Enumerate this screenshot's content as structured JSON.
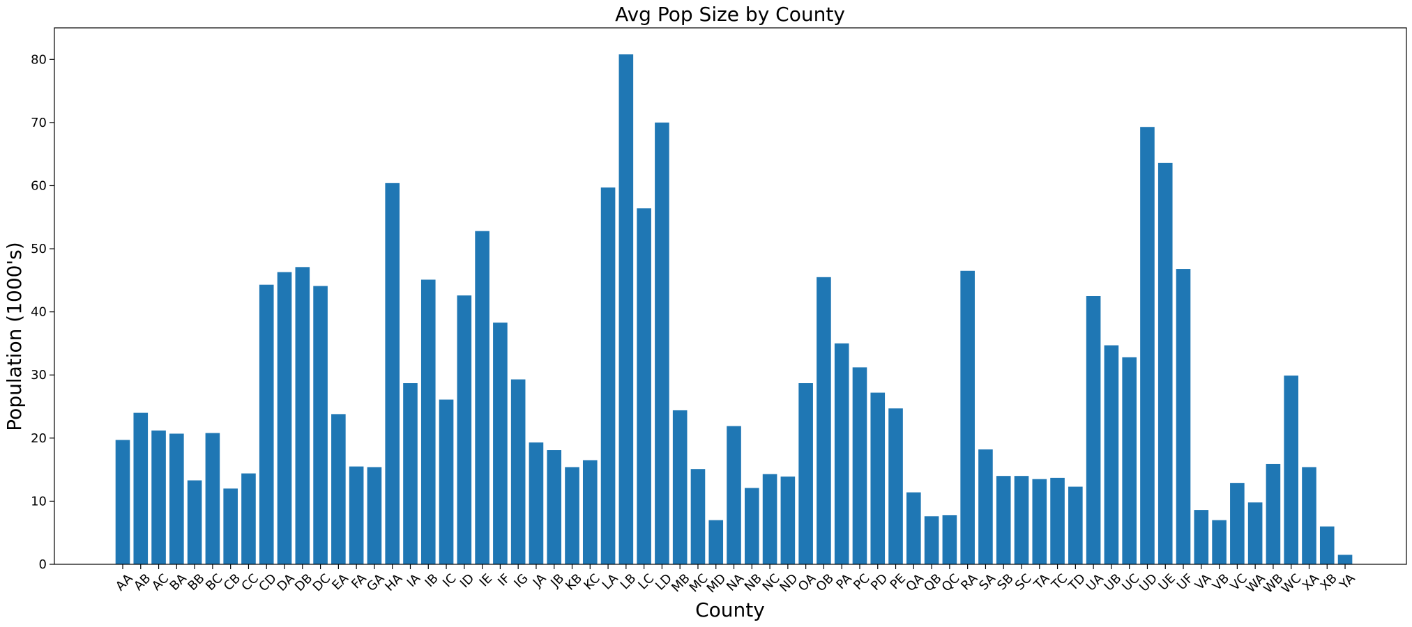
{
  "chart_data": {
    "type": "bar",
    "title": "Avg Pop Size by County",
    "xlabel": "County",
    "ylabel": "Population (1000's)",
    "ylim": [
      0,
      85
    ],
    "yticks": [
      0,
      10,
      20,
      30,
      40,
      50,
      60,
      70,
      80
    ],
    "grid": false,
    "bar_color": "#1f77b4",
    "categories": [
      "AA",
      "AB",
      "AC",
      "BA",
      "BB",
      "BC",
      "CB",
      "CC",
      "CD",
      "DA",
      "DB",
      "DC",
      "EA",
      "FA",
      "GA",
      "HA",
      "IA",
      "IB",
      "IC",
      "ID",
      "IE",
      "IF",
      "IG",
      "JA",
      "JB",
      "KB",
      "KC",
      "LA",
      "LB",
      "LC",
      "LD",
      "MB",
      "MC",
      "MD",
      "NA",
      "NB",
      "NC",
      "ND",
      "OA",
      "OB",
      "PA",
      "PC",
      "PD",
      "PE",
      "QA",
      "QB",
      "QC",
      "RA",
      "SA",
      "SB",
      "SC",
      "TA",
      "TC",
      "TD",
      "UA",
      "UB",
      "UC",
      "UD",
      "UE",
      "UF",
      "VA",
      "VB",
      "VC",
      "WA",
      "WB",
      "WC",
      "XA",
      "XB",
      "YA"
    ],
    "values": [
      19.7,
      24.0,
      21.2,
      20.7,
      13.3,
      20.8,
      12.0,
      14.4,
      44.3,
      46.3,
      47.1,
      44.1,
      23.8,
      15.5,
      15.4,
      60.4,
      28.7,
      45.1,
      26.1,
      42.6,
      52.8,
      38.3,
      29.3,
      19.3,
      18.1,
      15.4,
      16.5,
      59.7,
      80.8,
      56.4,
      70.0,
      24.4,
      15.1,
      7.0,
      21.9,
      12.1,
      14.3,
      13.9,
      28.7,
      45.5,
      35.0,
      31.2,
      27.2,
      24.7,
      11.4,
      7.6,
      7.8,
      46.5,
      18.2,
      14.0,
      14.0,
      13.5,
      13.7,
      12.3,
      42.5,
      34.7,
      32.8,
      69.3,
      63.6,
      46.8,
      8.6,
      7.0,
      12.9,
      9.8,
      15.9,
      29.9,
      15.4,
      6.0,
      1.5
    ]
  }
}
